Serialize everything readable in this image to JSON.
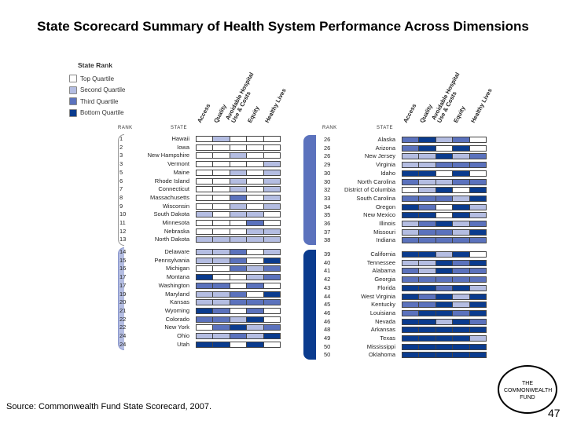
{
  "title": "State Scorecard Summary of Health System Performance Across Dimensions",
  "source": "Source: Commonwealth Fund State Scorecard, 2007.",
  "logo_text": "THE COMMONWEALTH FUND",
  "page_number": "47",
  "chart_data": {
    "type": "heatmap",
    "legend_title": "State Rank",
    "legend": [
      {
        "label": "Top Quartile",
        "color": "#ffffff"
      },
      {
        "label": "Second Quartile",
        "color": "#b4bde2"
      },
      {
        "label": "Third Quartile",
        "color": "#5b72bd"
      },
      {
        "label": "Bottom Quartile",
        "color": "#0a3b8e"
      }
    ],
    "rank_header": "RANK",
    "state_header": "STATE",
    "columns": [
      "Access",
      "Quality",
      "Avoidable Hospital Use & Costs",
      "Equity",
      "Healthy Lives"
    ],
    "rows": [
      [
        "1",
        "Hawaii",
        [
          1,
          2,
          1,
          1,
          1
        ]
      ],
      [
        "2",
        "Iowa",
        [
          1,
          1,
          1,
          1,
          1
        ]
      ],
      [
        "3",
        "New Hampshire",
        [
          1,
          1,
          2,
          1,
          1
        ]
      ],
      [
        "3",
        "Vermont",
        [
          1,
          1,
          1,
          1,
          2
        ]
      ],
      [
        "5",
        "Maine",
        [
          1,
          1,
          2,
          1,
          2
        ]
      ],
      [
        "6",
        "Rhode Island",
        [
          1,
          1,
          2,
          1,
          2
        ]
      ],
      [
        "7",
        "Connecticut",
        [
          1,
          1,
          2,
          1,
          2
        ]
      ],
      [
        "8",
        "Massachusetts",
        [
          1,
          1,
          3,
          1,
          2
        ]
      ],
      [
        "9",
        "Wisconsin",
        [
          1,
          1,
          2,
          1,
          2
        ]
      ],
      [
        "10",
        "South Dakota",
        [
          2,
          1,
          2,
          2,
          1
        ]
      ],
      [
        "11",
        "Minnesota",
        [
          1,
          1,
          1,
          3,
          1
        ]
      ],
      [
        "12",
        "Nebraska",
        [
          1,
          1,
          1,
          2,
          2
        ]
      ],
      [
        "13",
        "North Dakota",
        [
          2,
          2,
          2,
          2,
          2
        ]
      ],
      [
        "14",
        "Delaware",
        [
          2,
          2,
          3,
          1,
          2
        ]
      ],
      [
        "15",
        "Pennsylvania",
        [
          2,
          2,
          3,
          1,
          4
        ]
      ],
      [
        "16",
        "Michigan",
        [
          1,
          1,
          3,
          2,
          3
        ]
      ],
      [
        "17",
        "Montana",
        [
          4,
          1,
          1,
          2,
          3
        ]
      ],
      [
        "17",
        "Washington",
        [
          3,
          3,
          1,
          3,
          1
        ]
      ],
      [
        "19",
        "Maryland",
        [
          2,
          2,
          3,
          1,
          4
        ]
      ],
      [
        "20",
        "Kansas",
        [
          2,
          2,
          3,
          3,
          3
        ]
      ],
      [
        "21",
        "Wyoming",
        [
          4,
          3,
          1,
          3,
          1
        ]
      ],
      [
        "22",
        "Colorado",
        [
          3,
          3,
          2,
          4,
          1
        ]
      ],
      [
        "22",
        "New York",
        [
          1,
          3,
          4,
          2,
          3
        ]
      ],
      [
        "24",
        "Ohio",
        [
          2,
          2,
          3,
          2,
          4
        ]
      ],
      [
        "24",
        "Utah",
        [
          4,
          4,
          1,
          4,
          1
        ]
      ],
      [
        "26",
        "Alaska",
        [
          3,
          4,
          2,
          3,
          1
        ]
      ],
      [
        "26",
        "Arizona",
        [
          3,
          4,
          1,
          4,
          1
        ]
      ],
      [
        "26",
        "New Jersey",
        [
          2,
          2,
          4,
          2,
          3
        ]
      ],
      [
        "29",
        "Virginia",
        [
          2,
          2,
          3,
          3,
          3
        ]
      ],
      [
        "30",
        "Idaho",
        [
          4,
          4,
          1,
          4,
          1
        ]
      ],
      [
        "30",
        "North Carolina",
        [
          3,
          2,
          2,
          3,
          3
        ]
      ],
      [
        "32",
        "District of Columbia",
        [
          1,
          2,
          4,
          1,
          4
        ]
      ],
      [
        "33",
        "South Carolina",
        [
          3,
          3,
          3,
          2,
          4
        ]
      ],
      [
        "34",
        "Oregon",
        [
          4,
          3,
          1,
          4,
          2
        ]
      ],
      [
        "35",
        "New Mexico",
        [
          4,
          4,
          1,
          4,
          2
        ]
      ],
      [
        "36",
        "Illinois",
        [
          2,
          3,
          4,
          2,
          3
        ]
      ],
      [
        "37",
        "Missouri",
        [
          2,
          3,
          3,
          2,
          4
        ]
      ],
      [
        "38",
        "Indiana",
        [
          3,
          3,
          3,
          3,
          3
        ]
      ],
      [
        "39",
        "California",
        [
          4,
          4,
          2,
          4,
          1
        ]
      ],
      [
        "40",
        "Tennessee",
        [
          2,
          2,
          4,
          3,
          4
        ]
      ],
      [
        "41",
        "Alabama",
        [
          3,
          2,
          4,
          3,
          3
        ]
      ],
      [
        "42",
        "Georgia",
        [
          3,
          3,
          3,
          3,
          3
        ]
      ],
      [
        "43",
        "Florida",
        [
          4,
          4,
          3,
          4,
          2
        ]
      ],
      [
        "44",
        "West Virginia",
        [
          4,
          3,
          4,
          2,
          4
        ]
      ],
      [
        "45",
        "Kentucky",
        [
          3,
          3,
          4,
          2,
          4
        ]
      ],
      [
        "46",
        "Louisiana",
        [
          3,
          4,
          4,
          3,
          4
        ]
      ],
      [
        "46",
        "Nevada",
        [
          4,
          4,
          2,
          4,
          3
        ]
      ],
      [
        "48",
        "Arkansas",
        [
          4,
          4,
          4,
          4,
          4
        ]
      ],
      [
        "49",
        "Texas",
        [
          4,
          4,
          4,
          4,
          2
        ]
      ],
      [
        "50",
        "Mississippi",
        [
          4,
          4,
          4,
          4,
          4
        ]
      ],
      [
        "50",
        "Oklahoma",
        [
          4,
          4,
          4,
          4,
          4
        ]
      ]
    ]
  }
}
